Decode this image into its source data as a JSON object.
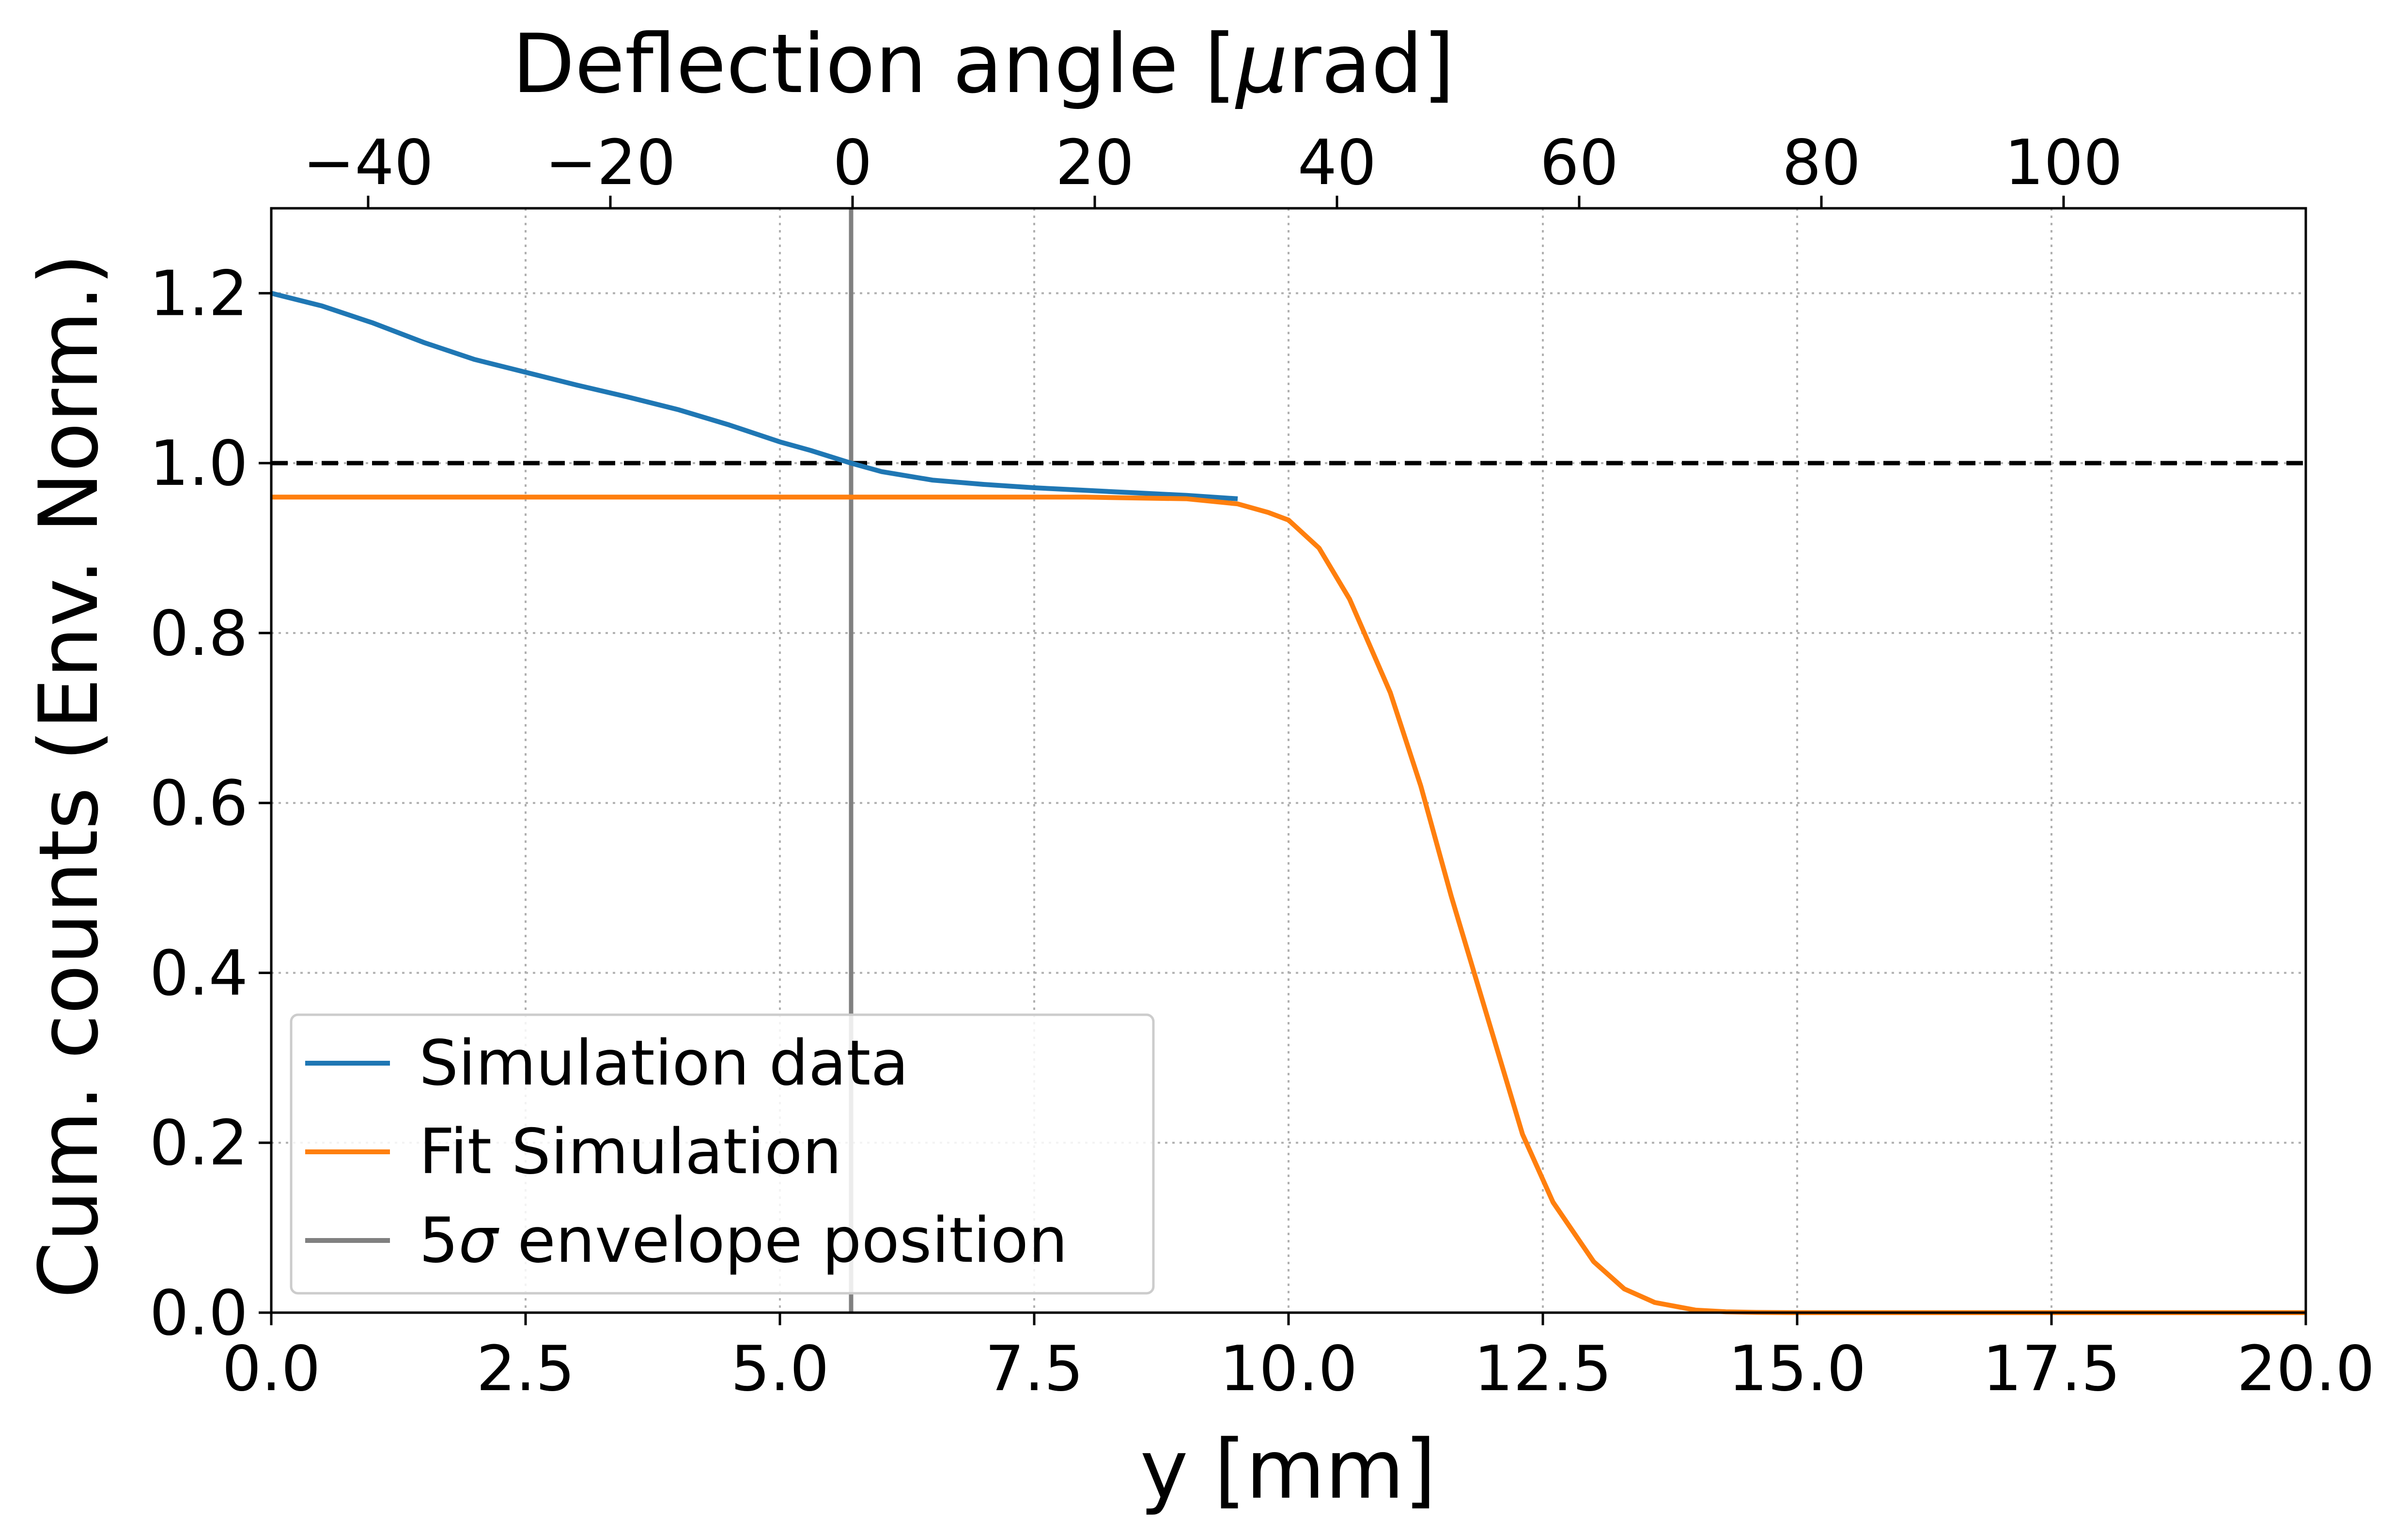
{
  "chart_data": {
    "type": "line",
    "xlabel": "y [mm]",
    "ylabel": "Cum. counts (Env. Norm.)",
    "top_xlabel": "Deflection angle [μrad]",
    "xlim": [
      0,
      20
    ],
    "ylim": [
      0,
      1.3
    ],
    "top_xlim": [
      -48,
      120
    ],
    "x_ticks": [
      0,
      2.5,
      5,
      7.5,
      10,
      12.5,
      15,
      17.5,
      20
    ],
    "x_tick_labels": [
      "0.0",
      "2.5",
      "5.0",
      "7.5",
      "10.0",
      "12.5",
      "15.0",
      "17.5",
      "20.0"
    ],
    "y_ticks": [
      0,
      0.2,
      0.4,
      0.6,
      0.8,
      1.0,
      1.2
    ],
    "y_tick_labels": [
      "0.0",
      "0.2",
      "0.4",
      "0.6",
      "0.8",
      "1.0",
      "1.2"
    ],
    "top_x_ticks": [
      -40,
      -20,
      0,
      20,
      40,
      60,
      80,
      100
    ],
    "top_x_tick_labels": [
      "−40",
      "−20",
      "0",
      "20",
      "40",
      "60",
      "80",
      "100"
    ],
    "grid": true,
    "legend_position": "lower-left",
    "series": [
      {
        "name": "Simulation data",
        "color": "#1f77b4",
        "x": [
          0,
          0.5,
          1,
          1.5,
          2,
          2.5,
          3,
          3.5,
          4,
          4.5,
          5,
          5.3,
          5.7,
          6.0,
          6.5,
          7,
          7.5,
          8,
          8.5,
          9,
          9.5
        ],
        "y": [
          1.2,
          1.185,
          1.165,
          1.142,
          1.122,
          1.107,
          1.092,
          1.078,
          1.063,
          1.045,
          1.025,
          1.015,
          1.0,
          0.99,
          0.98,
          0.975,
          0.971,
          0.968,
          0.965,
          0.962,
          0.958
        ]
      },
      {
        "name": "Fit Simulation",
        "color": "#ff7f0e",
        "x": [
          0,
          2,
          4,
          6,
          8,
          9,
          9.5,
          9.8,
          10,
          10.3,
          10.6,
          11,
          11.3,
          11.6,
          12,
          12.3,
          12.6,
          13,
          13.3,
          13.6,
          14,
          14.3,
          14.6,
          15,
          16,
          18,
          20
        ],
        "y": [
          0.96,
          0.96,
          0.96,
          0.96,
          0.96,
          0.958,
          0.952,
          0.942,
          0.933,
          0.9,
          0.84,
          0.73,
          0.62,
          0.49,
          0.33,
          0.21,
          0.13,
          0.06,
          0.028,
          0.012,
          0.003,
          0.001,
          0.0003,
          0,
          0,
          0,
          0
        ]
      }
    ],
    "reference_lines": [
      {
        "orientation": "horizontal",
        "value": 1.0,
        "style": "dashed",
        "color": "#000000"
      },
      {
        "orientation": "vertical",
        "value": 5.7,
        "style": "solid",
        "color": "#808080",
        "name": "5σ envelope position"
      }
    ],
    "legend_entries": [
      {
        "label_plain": "Simulation data",
        "color": "#1f77b4"
      },
      {
        "label_plain": "Fit Simulation",
        "color": "#ff7f0e"
      },
      {
        "label_prefix": "5",
        "label_symbol": "σ",
        "label_suffix": " envelope position",
        "color": "#808080"
      }
    ]
  }
}
